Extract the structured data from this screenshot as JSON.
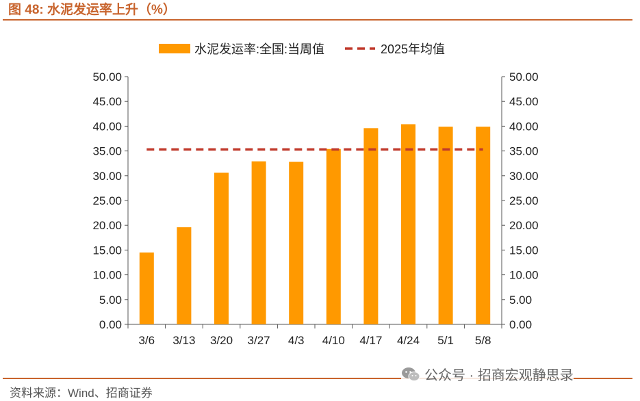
{
  "figure": {
    "title": "图 48:  水泥发运率上升（%）",
    "source": "资料来源：Wind、招商证券",
    "watermark": "公众号 · 招商宏观静思录",
    "watermark_icon": "wechat-icon"
  },
  "colors": {
    "accent": "#c8642d",
    "bar": "#ff9900",
    "dashed_line": "#c0392b",
    "axis": "#555555"
  },
  "chart_data": {
    "type": "bar",
    "categories": [
      "3/6",
      "3/13",
      "3/20",
      "3/27",
      "4/3",
      "4/10",
      "4/17",
      "4/24",
      "5/1",
      "5/8"
    ],
    "series": [
      {
        "name": "水泥发运率:全国:当周值",
        "type": "bar",
        "values": [
          14.5,
          19.6,
          30.6,
          32.9,
          32.8,
          35.4,
          39.6,
          40.4,
          39.9,
          39.9
        ]
      },
      {
        "name": "2025年均值",
        "type": "line-dashed",
        "values": [
          35.3,
          35.3,
          35.3,
          35.3,
          35.3,
          35.3,
          35.3,
          35.3,
          35.3,
          35.3
        ]
      }
    ],
    "ylim": [
      0,
      50
    ],
    "yticks": [
      "0.00",
      "5.00",
      "10.00",
      "15.00",
      "20.00",
      "25.00",
      "30.00",
      "35.00",
      "40.00",
      "45.00",
      "50.00"
    ],
    "y2ticks": [
      "0.00",
      "5.00",
      "10.00",
      "15.00",
      "20.00",
      "25.00",
      "30.00",
      "35.00",
      "40.00",
      "45.00",
      "50.00"
    ],
    "legend_position": "top",
    "grid": false
  }
}
